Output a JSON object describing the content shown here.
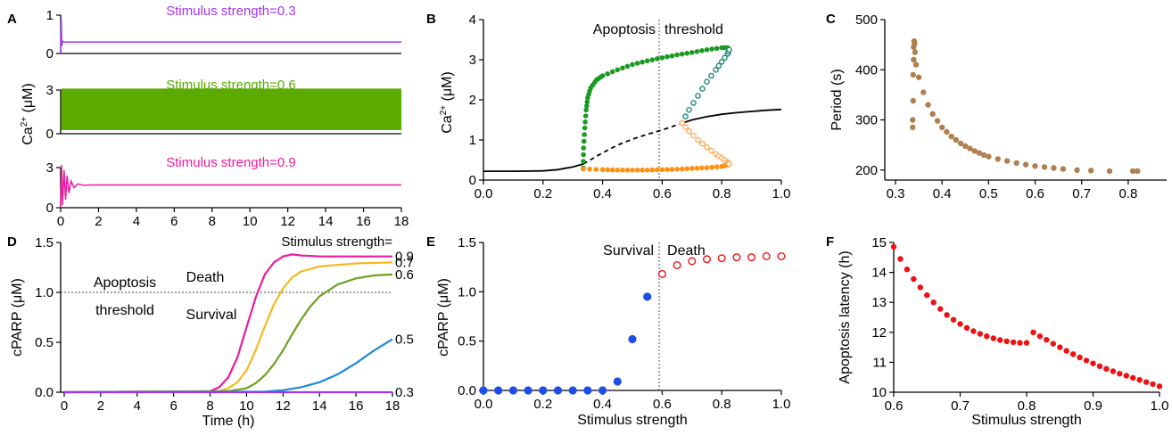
{
  "colors": {
    "purple": "#a335ee",
    "green": "#5aaa00",
    "magenta": "#ee1aa0",
    "darkgreen": "#1a9a20",
    "orange": "#ff9010",
    "lightorange": "#ffae60",
    "teal": "#1e8a70",
    "brown": "#b07f4f",
    "yellow": "#f5b820",
    "olive": "#6aa020",
    "blue": "#1e88d8",
    "red": "#ee1111",
    "royal": "#1d4ee8",
    "cyan": "#18b4d8",
    "crimson": "#e81a5a",
    "gray": "#777777"
  },
  "chart_data": [
    {
      "panel": "A",
      "type": "line",
      "xlabel": "",
      "ylabel": "Ca2+ (μM)",
      "xlim": [
        0,
        18
      ],
      "x_ticks": [
        0,
        2,
        4,
        6,
        8,
        10,
        12,
        14,
        16,
        18
      ],
      "subplots": [
        {
          "name": "Stimulus strength=0.3",
          "ylim": [
            0,
            1
          ],
          "y_ticks": [
            0,
            1
          ],
          "steady": 0.3,
          "behavior": "steady"
        },
        {
          "name": "Stimulus strength=0.6",
          "ylim": [
            0,
            3
          ],
          "y_ticks": [
            0,
            3
          ],
          "min": 0.25,
          "max": 3.1,
          "behavior": "oscillation"
        },
        {
          "name": "Stimulus strength=0.9",
          "ylim": [
            0,
            3
          ],
          "y_ticks": [
            0,
            3
          ],
          "steady": 1.7,
          "behavior": "damped"
        }
      ]
    },
    {
      "panel": "B",
      "type": "line",
      "xlabel": "",
      "ylabel": "Ca2+ (μM)",
      "xlim": [
        0,
        1
      ],
      "ylim": [
        0,
        4
      ],
      "x_ticks": [
        0.0,
        0.2,
        0.4,
        0.6,
        0.8,
        1.0
      ],
      "y_ticks": [
        0,
        1,
        2,
        3,
        4
      ],
      "threshold_x": 0.59,
      "annotations": [
        "Apoptosis",
        "threshold"
      ],
      "series": [
        {
          "name": "stable steady state (low)",
          "x": [
            0.0,
            0.1,
            0.2,
            0.25,
            0.3,
            0.335
          ],
          "y": [
            0.22,
            0.22,
            0.23,
            0.26,
            0.33,
            0.4
          ]
        },
        {
          "name": "unstable steady state",
          "x": [
            0.335,
            0.4,
            0.45,
            0.5,
            0.55,
            0.6,
            0.667
          ],
          "y": [
            0.4,
            0.68,
            0.87,
            1.02,
            1.14,
            1.25,
            1.42
          ]
        },
        {
          "name": "stable steady state (high)",
          "x": [
            0.667,
            0.7,
            0.75,
            0.8,
            0.85,
            0.9,
            0.95,
            1.0
          ],
          "y": [
            1.42,
            1.5,
            1.58,
            1.64,
            1.68,
            1.71,
            1.74,
            1.76
          ]
        },
        {
          "name": "stable oscillation max",
          "x": [
            0.335,
            0.336,
            0.34,
            0.345,
            0.35,
            0.36,
            0.38,
            0.4,
            0.45,
            0.5,
            0.55,
            0.6,
            0.65,
            0.7,
            0.75,
            0.8,
            0.82
          ],
          "y": [
            0.3,
            0.8,
            1.3,
            1.75,
            2.05,
            2.3,
            2.5,
            2.6,
            2.75,
            2.88,
            2.97,
            3.05,
            3.12,
            3.18,
            3.25,
            3.3,
            3.3
          ]
        },
        {
          "name": "stable oscillation min",
          "x": [
            0.335,
            0.4,
            0.45,
            0.5,
            0.55,
            0.6,
            0.65,
            0.7,
            0.75,
            0.8,
            0.82
          ],
          "y": [
            0.28,
            0.26,
            0.25,
            0.25,
            0.25,
            0.26,
            0.27,
            0.29,
            0.31,
            0.34,
            0.38
          ]
        },
        {
          "name": "unstable oscillation max",
          "x": [
            0.667,
            0.69,
            0.72,
            0.75,
            0.78,
            0.8,
            0.82,
            0.825
          ],
          "y": [
            1.42,
            1.75,
            2.1,
            2.45,
            2.75,
            2.95,
            3.15,
            3.25
          ]
        },
        {
          "name": "unstable oscillation min",
          "x": [
            0.667,
            0.69,
            0.72,
            0.75,
            0.78,
            0.8,
            0.82,
            0.825
          ],
          "y": [
            1.42,
            1.22,
            1.0,
            0.82,
            0.65,
            0.55,
            0.45,
            0.4
          ]
        }
      ]
    },
    {
      "panel": "C",
      "type": "scatter",
      "xlabel": "",
      "ylabel": "Period (s)",
      "xlim": [
        0.3,
        0.85
      ],
      "ylim": [
        180,
        500
      ],
      "x_ticks": [
        0.3,
        0.4,
        0.5,
        0.6,
        0.7,
        0.8
      ],
      "y_ticks": [
        200,
        300,
        400,
        500
      ],
      "series": [
        {
          "name": "Period",
          "x": [
            0.337,
            0.337,
            0.338,
            0.338,
            0.339,
            0.339,
            0.34,
            0.341,
            0.342,
            0.344,
            0.35,
            0.36,
            0.37,
            0.38,
            0.39,
            0.4,
            0.41,
            0.42,
            0.43,
            0.44,
            0.45,
            0.46,
            0.47,
            0.48,
            0.49,
            0.5,
            0.52,
            0.54,
            0.56,
            0.58,
            0.6,
            0.62,
            0.64,
            0.66,
            0.69,
            0.72,
            0.76,
            0.81,
            0.82
          ],
          "y": [
            285,
            300,
            338,
            390,
            420,
            445,
            457,
            452,
            435,
            410,
            385,
            355,
            330,
            312,
            298,
            285,
            276,
            267,
            260,
            253,
            248,
            243,
            238,
            234,
            230,
            227,
            222,
            218,
            214,
            211,
            208,
            206,
            204,
            202,
            200,
            199,
            198,
            198,
            198
          ]
        }
      ]
    },
    {
      "panel": "D",
      "type": "line",
      "xlabel": "Time (h)",
      "ylabel": "cPARP (μM)",
      "xlim": [
        0,
        18
      ],
      "ylim": [
        0,
        1.5
      ],
      "x_ticks": [
        0,
        2,
        4,
        6,
        8,
        10,
        12,
        14,
        16,
        18
      ],
      "y_ticks": [
        0.0,
        0.5,
        1.0,
        1.5
      ],
      "threshold_y": 1.0,
      "legend_title": "Stimulus strength=",
      "annotations": [
        "Apoptosis",
        "threshold",
        "Death",
        "Survival"
      ],
      "series": [
        {
          "name": "0.9",
          "x": [
            0,
            8,
            8.5,
            9,
            9.5,
            10,
            10.5,
            11,
            11.5,
            12,
            12.5,
            13,
            14,
            18
          ],
          "y": [
            0,
            0.01,
            0.05,
            0.15,
            0.35,
            0.65,
            0.95,
            1.18,
            1.3,
            1.36,
            1.38,
            1.37,
            1.36,
            1.36
          ]
        },
        {
          "name": "0.7",
          "x": [
            0,
            8.5,
            9,
            9.5,
            10,
            10.5,
            11,
            11.5,
            12,
            12.5,
            13,
            14,
            16,
            18
          ],
          "y": [
            0,
            0.01,
            0.04,
            0.1,
            0.22,
            0.42,
            0.66,
            0.88,
            1.04,
            1.15,
            1.21,
            1.26,
            1.29,
            1.3
          ]
        },
        {
          "name": "0.6",
          "x": [
            0,
            9,
            10,
            10.5,
            11,
            11.5,
            12,
            12.5,
            13,
            13.5,
            14,
            15,
            16,
            17,
            18
          ],
          "y": [
            0,
            0.01,
            0.04,
            0.09,
            0.17,
            0.28,
            0.42,
            0.58,
            0.73,
            0.86,
            0.96,
            1.08,
            1.14,
            1.17,
            1.18
          ]
        },
        {
          "name": "0.5",
          "x": [
            0,
            11,
            12,
            13,
            14,
            15,
            16,
            17,
            18
          ],
          "y": [
            0,
            0.005,
            0.02,
            0.05,
            0.1,
            0.18,
            0.29,
            0.42,
            0.53
          ]
        },
        {
          "name": "0.3",
          "x": [
            0,
            18
          ],
          "y": [
            0,
            0
          ]
        }
      ]
    },
    {
      "panel": "E",
      "type": "scatter",
      "xlabel": "Stimulus strength",
      "ylabel": "cPARP (μM)",
      "xlim": [
        0,
        1
      ],
      "ylim": [
        0,
        1.5
      ],
      "x_ticks": [
        0.0,
        0.2,
        0.4,
        0.6,
        0.8,
        1.0
      ],
      "y_ticks": [
        0.0,
        0.5,
        1.0,
        1.5
      ],
      "threshold_x": 0.59,
      "annotations": [
        "Survival",
        "Death"
      ],
      "series": [
        {
          "name": "Survival",
          "x": [
            0.0,
            0.05,
            0.1,
            0.15,
            0.2,
            0.25,
            0.3,
            0.35,
            0.4,
            0.45,
            0.5,
            0.55
          ],
          "y": [
            0,
            0,
            0,
            0,
            0,
            0,
            0,
            0,
            0,
            0.09,
            0.52,
            0.95
          ]
        },
        {
          "name": "Death",
          "x": [
            0.6,
            0.65,
            0.7,
            0.75,
            0.8,
            0.85,
            0.9,
            0.95,
            1.0
          ],
          "y": [
            1.18,
            1.27,
            1.31,
            1.33,
            1.34,
            1.35,
            1.35,
            1.36,
            1.36
          ]
        }
      ]
    },
    {
      "panel": "F",
      "type": "scatter",
      "xlabel": "Stimulus strength",
      "ylabel": "Apoptosis latency (h)",
      "xlim": [
        0.6,
        1.0
      ],
      "ylim": [
        10,
        15
      ],
      "x_ticks": [
        0.6,
        0.7,
        0.8,
        0.9,
        1.0
      ],
      "y_ticks": [
        10,
        11,
        12,
        13,
        14,
        15
      ],
      "series": [
        {
          "name": "Apoptosis latency",
          "x": [
            0.6,
            0.61,
            0.62,
            0.63,
            0.64,
            0.65,
            0.66,
            0.67,
            0.68,
            0.69,
            0.7,
            0.71,
            0.72,
            0.73,
            0.74,
            0.75,
            0.76,
            0.77,
            0.78,
            0.79,
            0.8,
            0.81,
            0.82,
            0.83,
            0.84,
            0.85,
            0.86,
            0.87,
            0.88,
            0.89,
            0.9,
            0.91,
            0.92,
            0.93,
            0.94,
            0.95,
            0.96,
            0.97,
            0.98,
            0.99,
            1.0
          ],
          "y": [
            14.85,
            14.45,
            14.1,
            13.78,
            13.5,
            13.24,
            13.0,
            12.78,
            12.58,
            12.42,
            12.28,
            12.15,
            12.04,
            11.95,
            11.87,
            11.8,
            11.74,
            11.7,
            11.67,
            11.65,
            11.65,
            12.0,
            11.87,
            11.75,
            11.62,
            11.5,
            11.38,
            11.27,
            11.16,
            11.06,
            10.96,
            10.87,
            10.78,
            10.7,
            10.62,
            10.55,
            10.48,
            10.41,
            10.34,
            10.27,
            10.2
          ]
        }
      ]
    }
  ],
  "labels": {
    "A": "A",
    "B": "B",
    "C": "C",
    "D": "D",
    "E": "E",
    "F": "F",
    "a_ylabel_base": "Ca",
    "a_ylabel_sup": "2+",
    "a_ylabel_unit": " (μM)",
    "b_ylabel_base": "Ca",
    "b_ylabel_sup": "2+",
    "b_ylabel_unit": " (μM)"
  }
}
